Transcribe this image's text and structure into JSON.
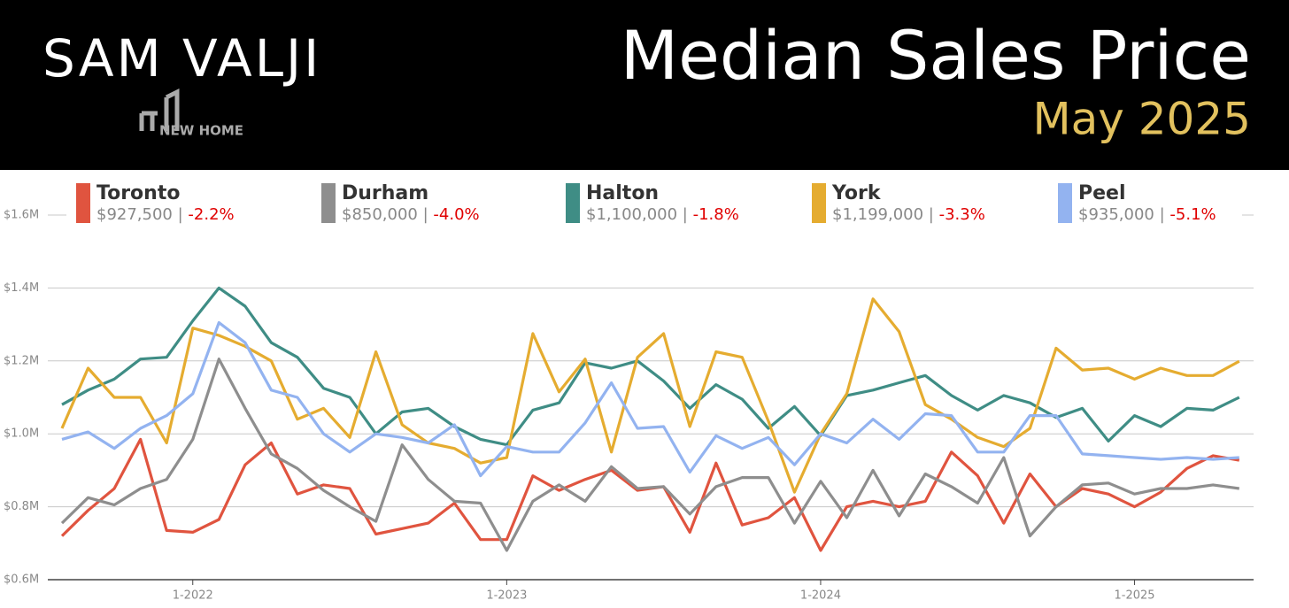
{
  "header": {
    "name": "SAM VALJI",
    "logo": "NEW HOME"
  },
  "chart_data": {
    "type": "line",
    "title": "Median Sales Price",
    "subtitle": "May 2025",
    "categories": [
      null,
      null,
      null,
      null,
      null,
      "1-2022",
      null,
      null,
      null,
      null,
      null,
      null,
      null,
      null,
      null,
      null,
      null,
      "1-2023",
      null,
      null,
      null,
      null,
      null,
      null,
      null,
      null,
      null,
      null,
      null,
      "1-2024",
      null,
      null,
      null,
      null,
      null,
      null,
      null,
      null,
      null,
      null,
      null,
      "1-2025",
      null,
      null,
      null,
      null
    ],
    "ylim": [
      600000,
      1600000
    ],
    "yticks": [
      {
        "value": 600000,
        "label": "$0.6M"
      },
      {
        "value": 800000,
        "label": "$0.8M"
      },
      {
        "value": 1000000,
        "label": "$1.0M"
      },
      {
        "value": 1200000,
        "label": "$1.2M"
      },
      {
        "value": 1400000,
        "label": "$1.4M"
      },
      {
        "value": 1600000,
        "label": "$1.6M"
      }
    ],
    "grid": true,
    "series": [
      {
        "name": "Toronto",
        "color": "#e0543f",
        "latest_label": "$927,500",
        "change": "-2.2%",
        "values": [
          720000,
          790000,
          850000,
          985000,
          735000,
          730000,
          765000,
          915000,
          975000,
          835000,
          860000,
          850000,
          725000,
          740000,
          755000,
          810000,
          710000,
          710000,
          885000,
          845000,
          875000,
          900000,
          845000,
          855000,
          730000,
          920000,
          750000,
          770000,
          825000,
          680000,
          800000,
          815000,
          800000,
          815000,
          950000,
          885000,
          755000,
          890000,
          800000,
          850000,
          835000,
          800000,
          840000,
          905000,
          940000,
          927500
        ]
      },
      {
        "name": "Durham",
        "color": "#8e8e8e",
        "latest_label": "$850,000",
        "change": "-4.0%",
        "values": [
          755000,
          825000,
          805000,
          850000,
          875000,
          985000,
          1205000,
          1070000,
          945000,
          905000,
          845000,
          800000,
          760000,
          970000,
          875000,
          815000,
          810000,
          680000,
          815000,
          860000,
          815000,
          910000,
          850000,
          855000,
          780000,
          855000,
          880000,
          880000,
          755000,
          870000,
          770000,
          900000,
          775000,
          890000,
          855000,
          810000,
          935000,
          720000,
          800000,
          860000,
          865000,
          835000,
          850000,
          850000,
          860000,
          850000
        ]
      },
      {
        "name": "Halton",
        "color": "#3f8d85",
        "latest_label": "$1,100,000",
        "change": "-1.8%",
        "values": [
          1080000,
          1120000,
          1150000,
          1205000,
          1210000,
          1310000,
          1400000,
          1350000,
          1250000,
          1210000,
          1125000,
          1100000,
          1000000,
          1060000,
          1070000,
          1020000,
          985000,
          970000,
          1065000,
          1085000,
          1195000,
          1180000,
          1200000,
          1145000,
          1070000,
          1135000,
          1095000,
          1015000,
          1075000,
          995000,
          1105000,
          1120000,
          1140000,
          1160000,
          1105000,
          1065000,
          1105000,
          1085000,
          1045000,
          1070000,
          980000,
          1050000,
          1020000,
          1070000,
          1065000,
          1100000
        ]
      },
      {
        "name": "York",
        "color": "#e5ac30",
        "latest_label": "$1,199,000",
        "change": "-3.3%",
        "values": [
          1015000,
          1180000,
          1100000,
          1100000,
          975000,
          1290000,
          1270000,
          1240000,
          1200000,
          1040000,
          1070000,
          990000,
          1225000,
          1025000,
          975000,
          960000,
          920000,
          935000,
          1275000,
          1115000,
          1205000,
          950000,
          1210000,
          1275000,
          1020000,
          1225000,
          1210000,
          1035000,
          840000,
          1000000,
          1110000,
          1370000,
          1280000,
          1080000,
          1040000,
          990000,
          965000,
          1015000,
          1235000,
          1175000,
          1180000,
          1150000,
          1180000,
          1160000,
          1160000,
          1199000
        ]
      },
      {
        "name": "Peel",
        "color": "#93b3f0",
        "latest_label": "$935,000",
        "change": "-5.1%",
        "values": [
          985000,
          1005000,
          960000,
          1015000,
          1050000,
          1110000,
          1305000,
          1250000,
          1120000,
          1100000,
          1000000,
          950000,
          1000000,
          990000,
          975000,
          1025000,
          885000,
          965000,
          950000,
          950000,
          1030000,
          1140000,
          1015000,
          1020000,
          895000,
          995000,
          960000,
          990000,
          915000,
          1000000,
          975000,
          1040000,
          985000,
          1055000,
          1050000,
          950000,
          950000,
          1050000,
          1050000,
          945000,
          940000,
          935000,
          930000,
          935000,
          930000,
          935000
        ]
      }
    ]
  }
}
